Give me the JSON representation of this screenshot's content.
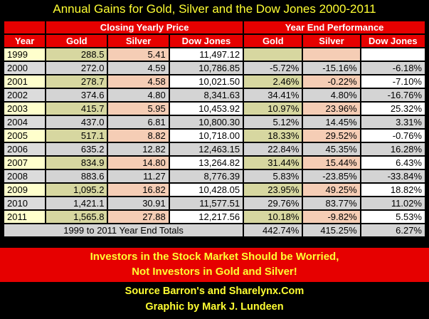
{
  "title": "Annual Gains for Gold, Silver and the Dow Jones 2000-2011",
  "header": {
    "year_label": "Year",
    "closing_group": "Closing Yearly  Price",
    "performance_group": "Year End Performance",
    "gold": "Gold",
    "silver": "Silver",
    "dow": "Dow Jones"
  },
  "rows": [
    {
      "year": "1999",
      "gold": "288.5",
      "silver": "5.41",
      "dow": "11,497.12",
      "gold_pct": "",
      "silver_pct": "",
      "dow_pct": ""
    },
    {
      "year": "2000",
      "gold": "272.0",
      "silver": "4.59",
      "dow": "10,786.85",
      "gold_pct": "-5.72%",
      "silver_pct": "-15.16%",
      "dow_pct": "-6.18%"
    },
    {
      "year": "2001",
      "gold": "278.7",
      "silver": "4.58",
      "dow": "10,021.50",
      "gold_pct": "2.46%",
      "silver_pct": "-0.22%",
      "dow_pct": "-7.10%"
    },
    {
      "year": "2002",
      "gold": "374.6",
      "silver": "4.80",
      "dow": "8,341.63",
      "gold_pct": "34.41%",
      "silver_pct": "4.80%",
      "dow_pct": "-16.76%"
    },
    {
      "year": "2003",
      "gold": "415.7",
      "silver": "5.95",
      "dow": "10,453.92",
      "gold_pct": "10.97%",
      "silver_pct": "23.96%",
      "dow_pct": "25.32%"
    },
    {
      "year": "2004",
      "gold": "437.0",
      "silver": "6.81",
      "dow": "10,800.30",
      "gold_pct": "5.12%",
      "silver_pct": "14.45%",
      "dow_pct": "3.31%"
    },
    {
      "year": "2005",
      "gold": "517.1",
      "silver": "8.82",
      "dow": "10,718.00",
      "gold_pct": "18.33%",
      "silver_pct": "29.52%",
      "dow_pct": "-0.76%"
    },
    {
      "year": "2006",
      "gold": "635.2",
      "silver": "12.82",
      "dow": "12,463.15",
      "gold_pct": "22.84%",
      "silver_pct": "45.35%",
      "dow_pct": "16.28%"
    },
    {
      "year": "2007",
      "gold": "834.9",
      "silver": "14.80",
      "dow": "13,264.82",
      "gold_pct": "31.44%",
      "silver_pct": "15.44%",
      "dow_pct": "6.43%"
    },
    {
      "year": "2008",
      "gold": "883.6",
      "silver": "11.27",
      "dow": "8,776.39",
      "gold_pct": "5.83%",
      "silver_pct": "-23.85%",
      "dow_pct": "-33.84%"
    },
    {
      "year": "2009",
      "gold": "1,095.2",
      "silver": "16.82",
      "dow": "10,428.05",
      "gold_pct": "23.95%",
      "silver_pct": "49.25%",
      "dow_pct": "18.82%"
    },
    {
      "year": "2010",
      "gold": "1,421.1",
      "silver": "30.91",
      "dow": "11,577.51",
      "gold_pct": "29.76%",
      "silver_pct": "83.77%",
      "dow_pct": "11.02%"
    },
    {
      "year": "2011",
      "gold": "1,565.8",
      "silver": "27.88",
      "dow": "12,217.56",
      "gold_pct": "10.18%",
      "silver_pct": "-9.82%",
      "dow_pct": "5.53%"
    }
  ],
  "totals": {
    "label": "1999 to 2011 Year End Totals",
    "gold_pct": "442.74%",
    "silver_pct": "415.25%",
    "dow_pct": "6.27%"
  },
  "banner": {
    "line1": "Investors in the Stock Market Should be Worried,",
    "line2": "Not Investors in Gold and Silver!"
  },
  "credits": {
    "source": "Source Barron's and Sharelynx.Com",
    "graphic": "Graphic by Mark J. Lundeen"
  },
  "colors": {
    "background": "#000000",
    "header_red": "#e60000",
    "title_yellow": "#ffff33",
    "gold_cell": "#d7d7a0",
    "silver_cell": "#f5cdb5",
    "dow_cell": "#ffffff"
  }
}
